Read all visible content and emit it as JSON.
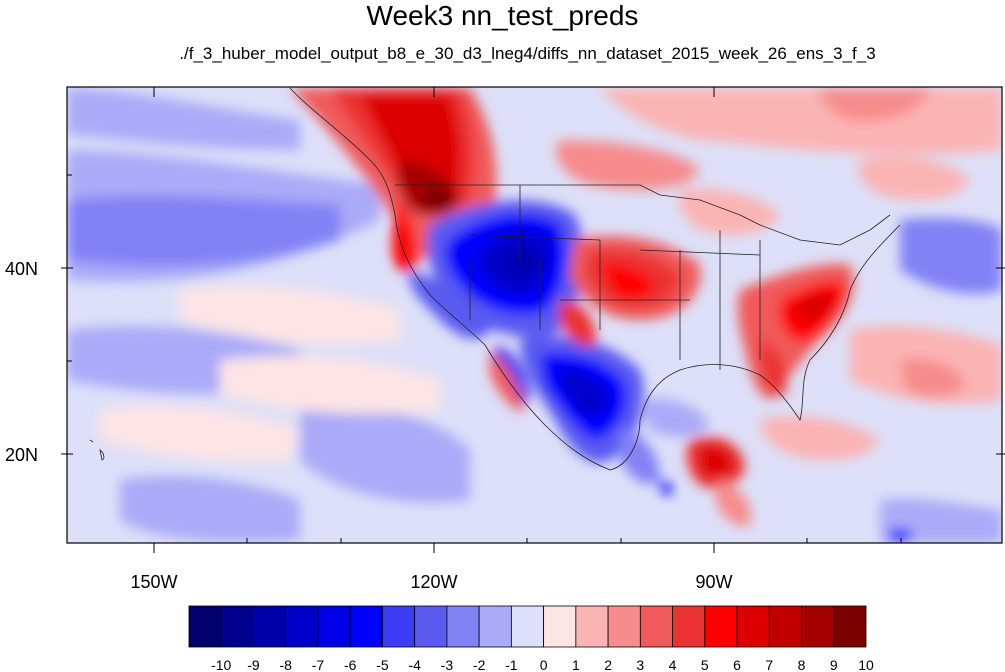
{
  "title": "Week3 nn_test_preds",
  "subtitle": "./f_3_huber_model_output_b8_e_30_d3_lneg4/diffs_nn_dataset_2015_week_26_ens_3_f_3",
  "map": {
    "lon_ticks": [
      "150W",
      "120W",
      "90W"
    ],
    "lat_ticks": [
      "40N",
      "20N"
    ],
    "lon_range": [
      -160,
      -62
    ],
    "lat_range": [
      10,
      59
    ]
  },
  "colorbar": {
    "labels": [
      "-10",
      "-9",
      "-8",
      "-7",
      "-6",
      "-5",
      "-4",
      "-3",
      "-2",
      "-1",
      "0",
      "1",
      "2",
      "3",
      "4",
      "5",
      "6",
      "7",
      "8",
      "9",
      "10"
    ],
    "colors": [
      "#00006e",
      "#00008c",
      "#0000aa",
      "#0000c8",
      "#0000e6",
      "#0000ff",
      "#3c3cf5",
      "#5a5af0",
      "#8282f5",
      "#aaaaf8",
      "#dde0f8",
      "#fde5e5",
      "#fbb4b4",
      "#f68c8c",
      "#f05a5a",
      "#eb3232",
      "#ff0000",
      "#dc0000",
      "#c00000",
      "#a50000",
      "#7d0000"
    ]
  }
}
